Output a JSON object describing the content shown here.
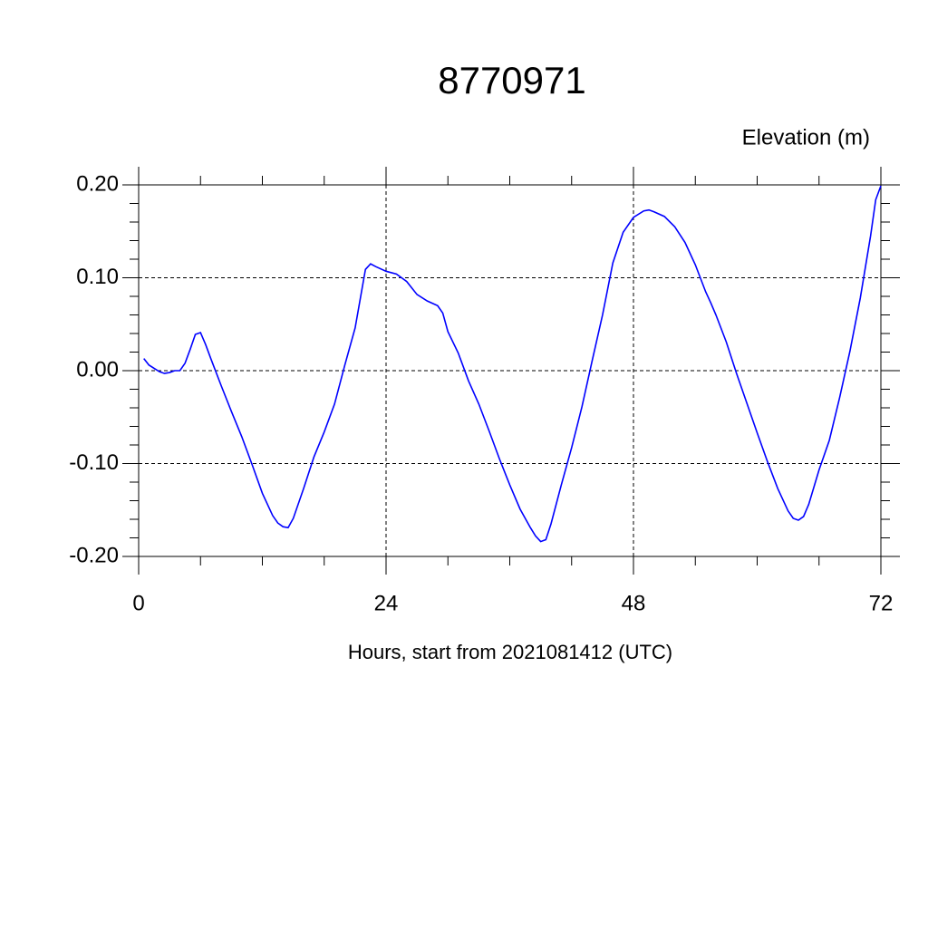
{
  "chart_data": {
    "type": "line",
    "title": "8770971",
    "y_label": "Elevation (m)",
    "x_label": "Hours, start from 2021081412 (UTC)",
    "x": [
      0.5,
      1,
      2,
      2.5,
      3,
      3.5,
      4,
      4.5,
      5,
      5.5,
      6,
      6.5,
      7,
      8,
      9,
      10,
      11,
      12,
      13,
      13.5,
      14,
      14.5,
      15,
      16,
      17,
      18,
      19,
      20,
      21,
      22,
      22.5,
      23,
      24,
      25,
      26,
      27,
      28,
      29,
      29.5,
      30,
      31,
      32,
      33,
      34,
      35,
      36,
      37,
      38,
      38.5,
      39,
      39.5,
      40,
      41,
      42,
      43,
      44,
      45,
      46,
      47,
      48,
      49,
      49.5,
      50,
      51,
      52,
      53,
      54,
      55,
      55.5,
      56,
      57,
      58,
      59,
      60,
      61,
      62,
      63,
      63.5,
      64,
      64.5,
      65,
      66,
      67,
      68,
      69,
      70,
      71,
      71.5,
      72
    ],
    "series": [
      {
        "name": "Elevation",
        "color": "#0000ff",
        "values": [
          0.013,
          0.006,
          -0.001,
          -0.003,
          -0.002,
          0,
          0,
          0.008,
          0.023,
          0.039,
          0.041,
          0.028,
          0.013,
          -0.016,
          -0.044,
          -0.071,
          -0.101,
          -0.132,
          -0.156,
          -0.164,
          -0.168,
          -0.169,
          -0.159,
          -0.127,
          -0.093,
          -0.066,
          -0.036,
          0.006,
          0.046,
          0.109,
          0.115,
          0.112,
          0.107,
          0.104,
          0.096,
          0.082,
          0.075,
          0.07,
          0.062,
          0.042,
          0.019,
          -0.011,
          -0.036,
          -0.065,
          -0.095,
          -0.123,
          -0.149,
          -0.169,
          -0.178,
          -0.184,
          -0.182,
          -0.165,
          -0.123,
          -0.083,
          -0.039,
          0.011,
          0.06,
          0.116,
          0.149,
          0.165,
          0.172,
          0.173,
          0.171,
          0.166,
          0.155,
          0.138,
          0.114,
          0.085,
          0.073,
          0.06,
          0.031,
          -0.003,
          -0.035,
          -0.067,
          -0.098,
          -0.127,
          -0.151,
          -0.159,
          -0.161,
          -0.157,
          -0.144,
          -0.107,
          -0.075,
          -0.029,
          0.021,
          0.078,
          0.145,
          0.184,
          0.199
        ]
      }
    ],
    "xlim": [
      0,
      72
    ],
    "xticks": [
      0,
      24,
      48,
      72
    ],
    "ylim": [
      -0.2,
      0.2
    ],
    "yticks": [
      {
        "value": -0.2,
        "label": "-0.20"
      },
      {
        "value": -0.1,
        "label": "-0.10"
      },
      {
        "value": 0,
        "label": "0.00"
      },
      {
        "value": 0.1,
        "label": "0.10"
      },
      {
        "value": 0.2,
        "label": "0.20"
      }
    ],
    "grid": true
  }
}
